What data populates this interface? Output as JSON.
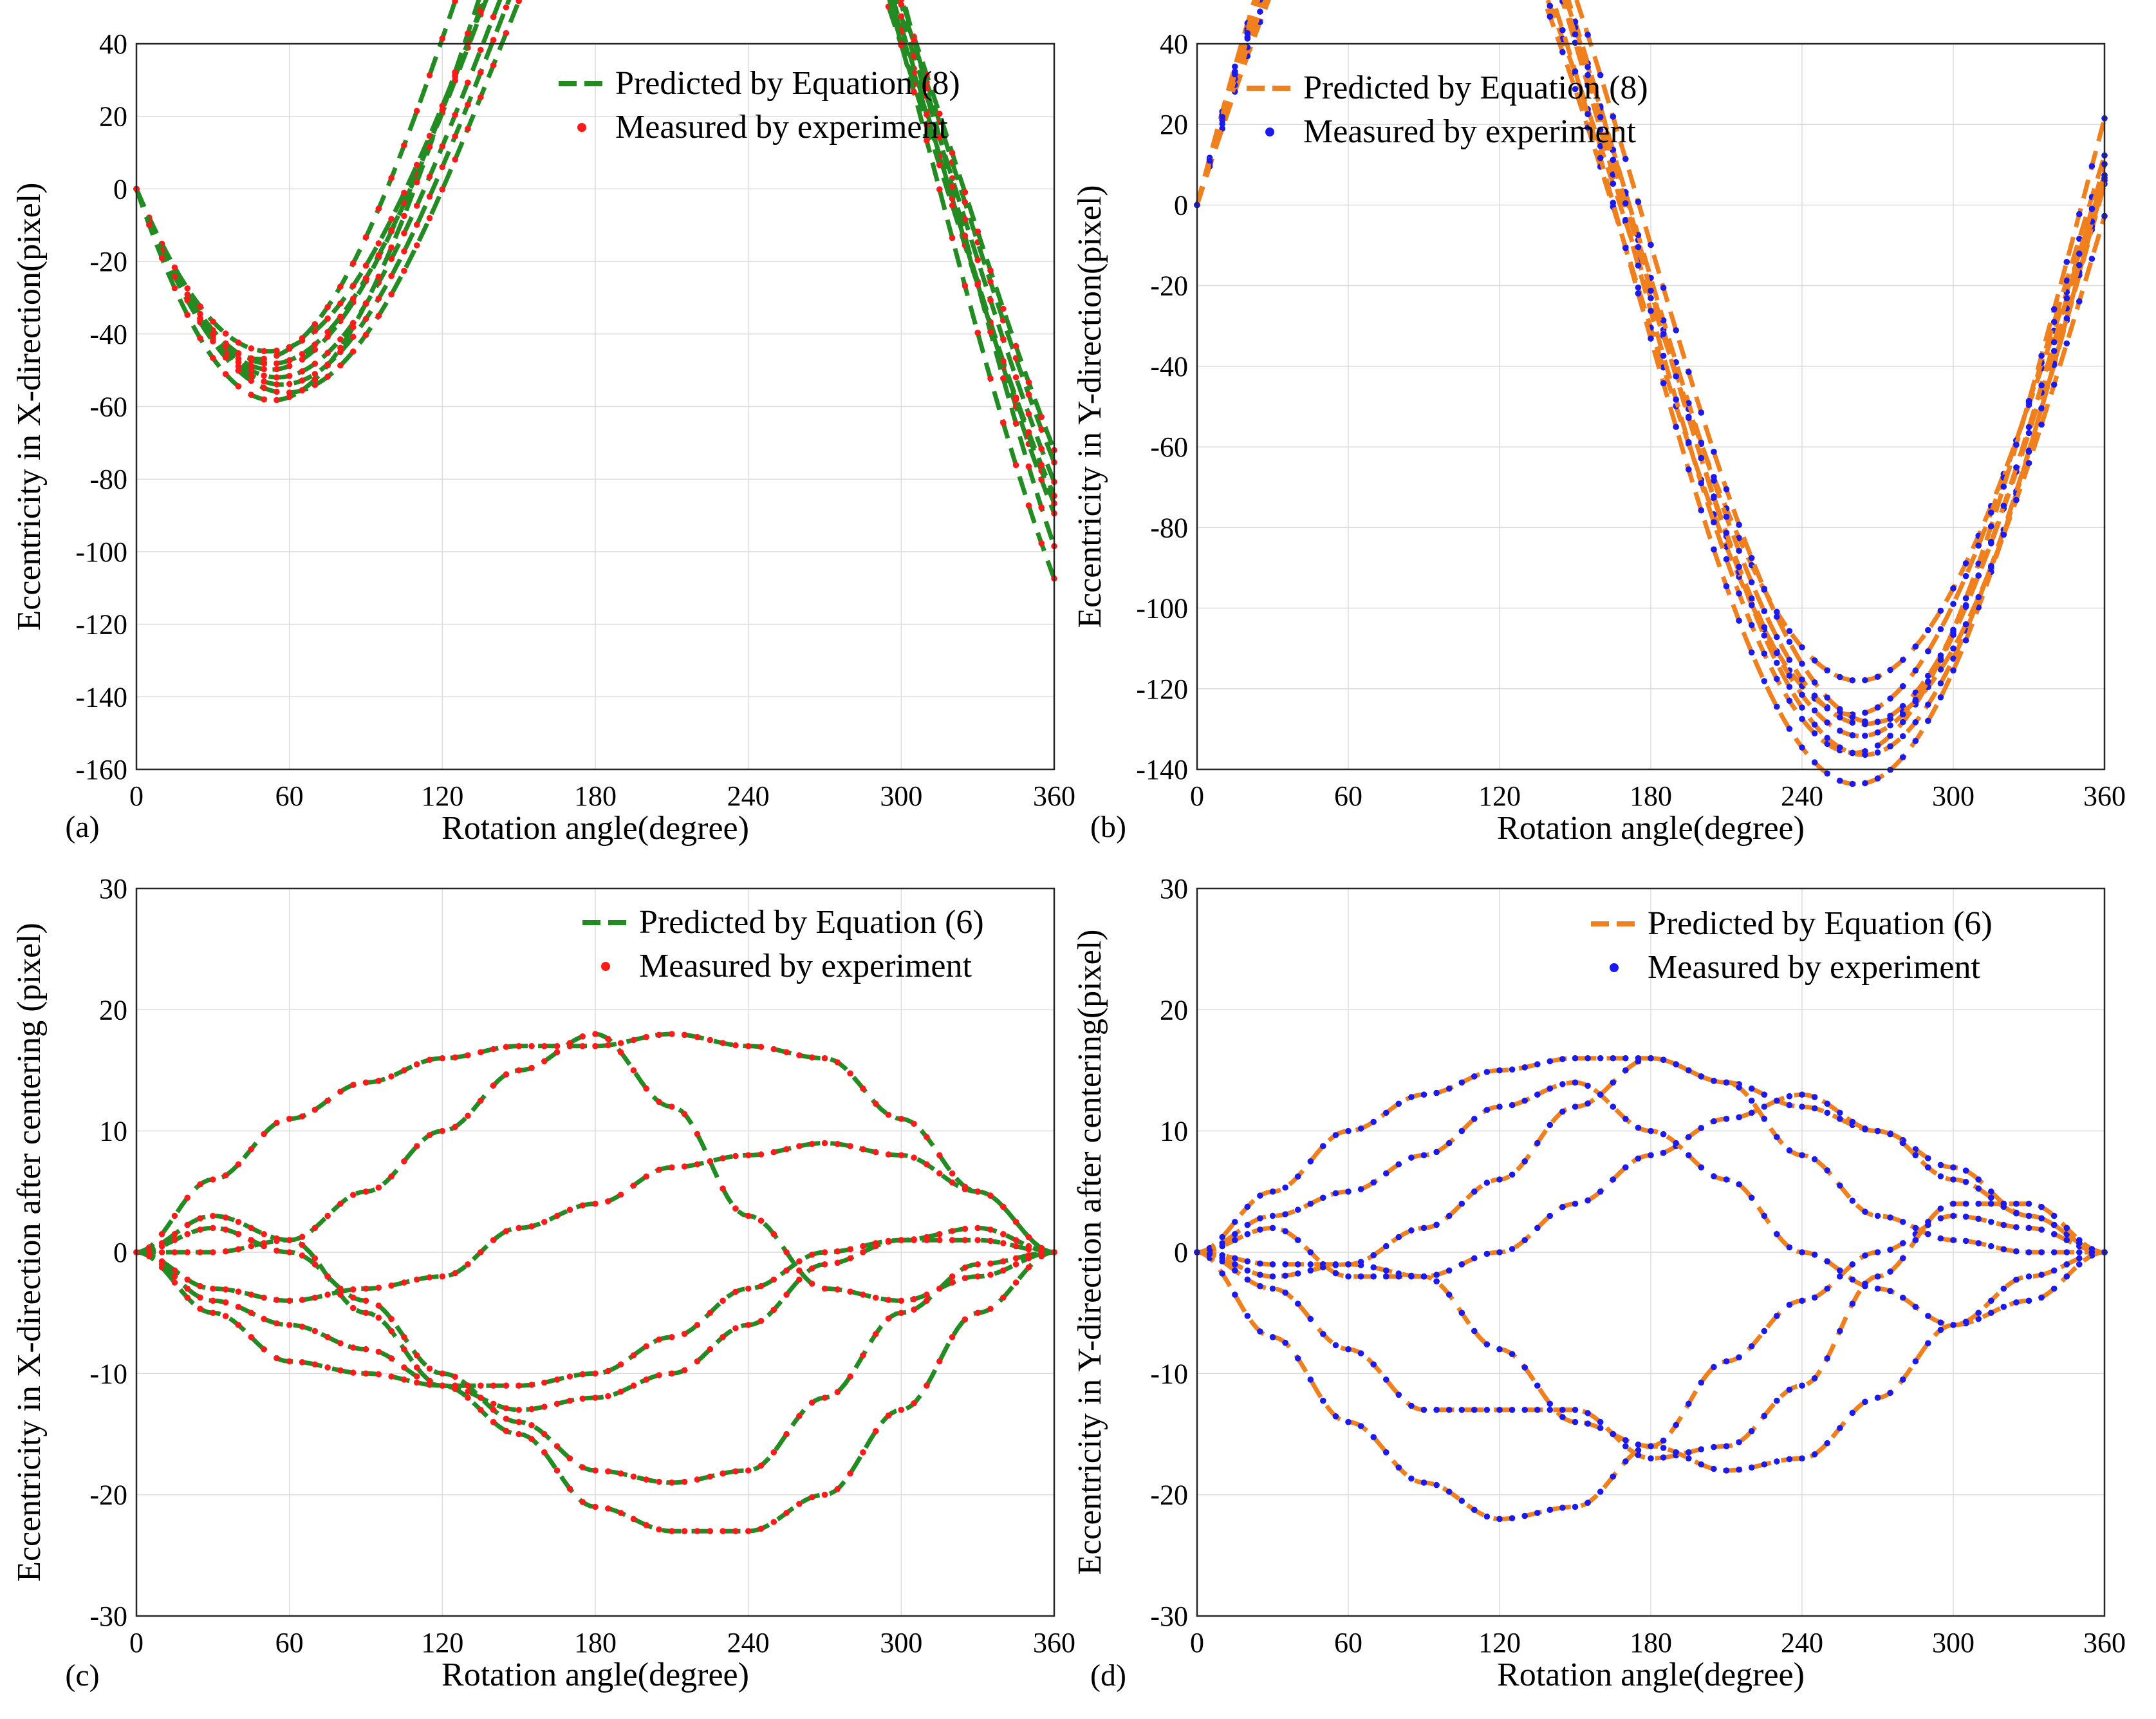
{
  "chart_data": [
    {
      "panel": "(a)",
      "type": "line",
      "xlabel": "Rotation angle(degree)",
      "ylabel": "Eccentricity in X-direction(pixel)",
      "xlim": [
        0,
        360
      ],
      "ylim": [
        -160,
        40
      ],
      "xticks": [
        0,
        60,
        120,
        180,
        240,
        300,
        360
      ],
      "yticks": [
        -160,
        -140,
        -120,
        -100,
        -80,
        -60,
        -40,
        -20,
        0,
        20,
        40
      ],
      "grid": true,
      "legend_position": "top-right",
      "legend": [
        "Predicted by Equation (8)",
        "Measured by experiment"
      ],
      "predicted_color": "#228B22",
      "measured_color": "#FF1A1A",
      "model": "sine",
      "sine_curves": [
        {
          "amp": 123,
          "phase_deg": 136,
          "offset": -4
        },
        {
          "amp": 119,
          "phase_deg": 136,
          "offset": -4
        },
        {
          "amp": 117,
          "phase_deg": 139,
          "offset": -4
        },
        {
          "amp": 115,
          "phase_deg": 141,
          "offset": -3
        },
        {
          "amp": 113,
          "phase_deg": 143,
          "offset": -4
        },
        {
          "amp": 114,
          "phase_deg": 135,
          "offset": -4
        },
        {
          "amp": 137,
          "phase_deg": 131,
          "offset": -4
        },
        {
          "amp": 140,
          "phase_deg": 137,
          "offset": -3
        }
      ]
    },
    {
      "panel": "(b)",
      "type": "line",
      "xlabel": "Rotation angle(degree)",
      "ylabel": "Eccentricity in Y-direction(pixel)",
      "xlim": [
        0,
        360
      ],
      "ylim": [
        -140,
        40
      ],
      "xticks": [
        0,
        60,
        120,
        180,
        240,
        300,
        360
      ],
      "yticks": [
        -140,
        -120,
        -100,
        -80,
        -60,
        -40,
        -20,
        0,
        20,
        40
      ],
      "grid": true,
      "legend_position": "top-left",
      "legend": [
        "Predicted by Equation (8)",
        "Measured by experiment"
      ],
      "predicted_color": "#F07F1D",
      "measured_color": "#1A1AF0",
      "model": "sine",
      "sine_curves": [
        {
          "amp": 110,
          "phase_deg": -7,
          "offset": -6
        },
        {
          "amp": 117,
          "phase_deg": -9,
          "offset": -6
        },
        {
          "amp": 133,
          "phase_deg": -8,
          "offset": 3
        },
        {
          "amp": 129,
          "phase_deg": -5,
          "offset": -6
        },
        {
          "amp": 130,
          "phase_deg": -8,
          "offset": -12
        },
        {
          "amp": 123,
          "phase_deg": -5,
          "offset": -4
        },
        {
          "amp": 122,
          "phase_deg": -2,
          "offset": -7
        },
        {
          "amp": 126,
          "phase_deg": -6,
          "offset": -3
        }
      ]
    },
    {
      "panel": "(c)",
      "type": "line",
      "xlabel": "Rotation angle(degree)",
      "ylabel": "Eccentricity in X-direction after centering (pixel)",
      "xlim": [
        0,
        360
      ],
      "ylim": [
        -30,
        30
      ],
      "xticks": [
        0,
        60,
        120,
        180,
        240,
        300,
        360
      ],
      "yticks": [
        -30,
        -20,
        -10,
        0,
        10,
        20,
        30
      ],
      "grid": true,
      "legend_position": "top-right",
      "legend": [
        "Predicted by Equation (6)",
        "Measured by experiment"
      ],
      "predicted_color": "#228B22",
      "measured_color": "#FF1A1A",
      "model": "polyline",
      "curves": [
        {
          "x": [
            0,
            30,
            60,
            90,
            120,
            150,
            180,
            210,
            240,
            270,
            300,
            330,
            360
          ],
          "y": [
            0,
            -5,
            -9,
            -10,
            -11,
            -15,
            -21,
            -23,
            -23,
            -20,
            -13,
            -5,
            0
          ]
        },
        {
          "x": [
            0,
            30,
            60,
            90,
            120,
            150,
            180,
            210,
            240,
            270,
            300,
            330,
            360
          ],
          "y": [
            0,
            6,
            11,
            14,
            16,
            17,
            17,
            18,
            17,
            16,
            11,
            5,
            0
          ]
        },
        {
          "x": [
            0,
            30,
            60,
            90,
            120,
            150,
            180,
            210,
            240,
            270,
            300,
            330,
            360
          ],
          "y": [
            0,
            -3,
            -4,
            -3,
            -2,
            2,
            4,
            7,
            8,
            9,
            8,
            5,
            0
          ]
        },
        {
          "x": [
            0,
            30,
            60,
            90,
            120,
            150,
            180,
            210,
            240,
            270,
            300,
            330,
            360
          ],
          "y": [
            0,
            3,
            1,
            -5,
            -11,
            -13,
            -12,
            -10,
            -6,
            -1,
            1,
            2,
            0
          ]
        },
        {
          "x": [
            0,
            30,
            60,
            90,
            120,
            150,
            180,
            210,
            240,
            270,
            300,
            330,
            360
          ],
          "y": [
            0,
            2,
            0,
            -4,
            -10,
            -14,
            -18,
            -19,
            -18,
            -12,
            -5,
            -1,
            0
          ]
        },
        {
          "x": [
            0,
            30,
            60,
            90,
            120,
            150,
            180,
            210,
            240,
            270,
            300,
            330,
            360
          ],
          "y": [
            0,
            0,
            1,
            5,
            10,
            15,
            18,
            12,
            3,
            -3,
            -4,
            -2,
            0
          ]
        },
        {
          "x": [
            0,
            30,
            60,
            90,
            120,
            150,
            180,
            210,
            240,
            270,
            300,
            330,
            360
          ],
          "y": [
            0,
            -4,
            -6,
            -8,
            -11,
            -11,
            -10,
            -7,
            -3,
            0,
            1,
            1,
            0
          ]
        }
      ]
    },
    {
      "panel": "(d)",
      "type": "line",
      "xlabel": "Rotation angle(degree)",
      "ylabel": "Eccentricity in Y-direction after centering(pixel)",
      "xlim": [
        0,
        360
      ],
      "ylim": [
        -30,
        30
      ],
      "xticks": [
        0,
        60,
        120,
        180,
        240,
        300,
        360
      ],
      "yticks": [
        -30,
        -20,
        -10,
        0,
        10,
        20,
        30
      ],
      "grid": true,
      "legend_position": "top-right",
      "legend": [
        "Predicted by Equation (6)",
        "Measured by experiment"
      ],
      "predicted_color": "#F07F1D",
      "measured_color": "#1A1AF0",
      "model": "polyline",
      "curves": [
        {
          "x": [
            0,
            30,
            60,
            90,
            120,
            150,
            180,
            210,
            240,
            270,
            300,
            330,
            360
          ],
          "y": [
            0,
            5,
            10,
            13,
            15,
            16,
            16,
            14,
            12,
            10,
            7,
            3,
            0
          ]
        },
        {
          "x": [
            0,
            30,
            60,
            90,
            120,
            150,
            180,
            210,
            240,
            270,
            300,
            330,
            360
          ],
          "y": [
            0,
            -7,
            -14,
            -19,
            -22,
            -21,
            -16,
            -9,
            -4,
            0,
            3,
            2,
            0
          ]
        },
        {
          "x": [
            0,
            30,
            60,
            90,
            120,
            150,
            180,
            210,
            240,
            270,
            300,
            330,
            360
          ],
          "y": [
            0,
            -1,
            -1,
            -2,
            0,
            4,
            8,
            11,
            13,
            10,
            6,
            3,
            0
          ]
        },
        {
          "x": [
            0,
            30,
            60,
            90,
            120,
            150,
            180,
            210,
            240,
            270,
            300,
            330,
            360
          ],
          "y": [
            0,
            3,
            5,
            8,
            12,
            14,
            10,
            6,
            0,
            -3,
            -6,
            -4,
            0
          ]
        },
        {
          "x": [
            0,
            30,
            60,
            90,
            120,
            150,
            180,
            210,
            240,
            270,
            300,
            330,
            360
          ],
          "y": [
            0,
            -3,
            -8,
            -13,
            -13,
            -13,
            -17,
            -16,
            -11,
            -2,
            4,
            4,
            0
          ]
        },
        {
          "x": [
            0,
            30,
            60,
            90,
            120,
            150,
            180,
            210,
            240,
            270,
            300,
            330,
            360
          ],
          "y": [
            0,
            2,
            -2,
            -2,
            -8,
            -14,
            -16,
            -18,
            -17,
            -12,
            -6,
            -2,
            0
          ]
        },
        {
          "x": [
            0,
            30,
            60,
            90,
            120,
            150,
            180,
            210,
            240,
            270,
            300,
            330,
            360
          ],
          "y": [
            0,
            -2,
            -1,
            2,
            6,
            12,
            16,
            14,
            8,
            3,
            1,
            0,
            0
          ]
        }
      ]
    }
  ]
}
